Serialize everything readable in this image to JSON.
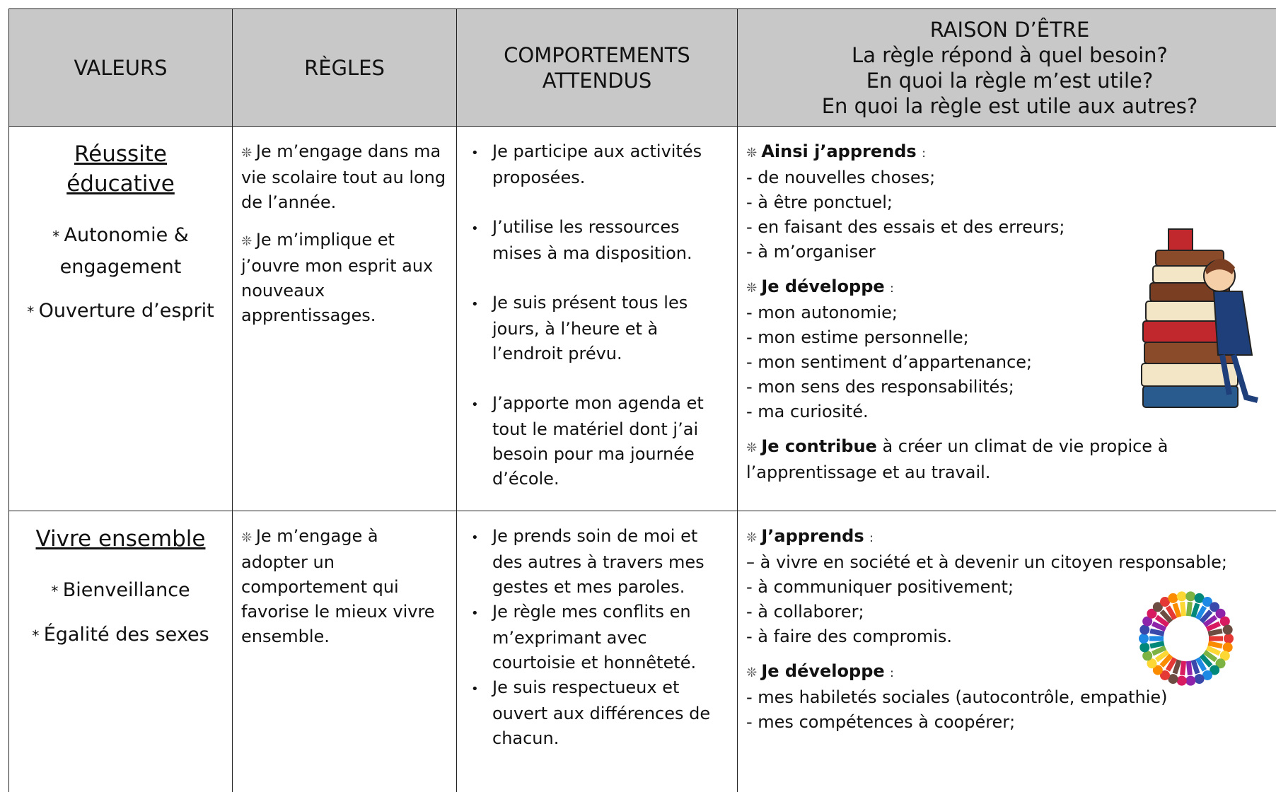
{
  "table": {
    "header": {
      "valeurs": "VALEURS",
      "regles": "RÈGLES",
      "comportements": [
        "COMPORTEMENTS",
        "ATTENDUS"
      ],
      "raison": {
        "title": "RAISON D’ÊTRE",
        "questions": [
          "La règle répond à quel besoin?",
          "En quoi la règle m’est utile?",
          "En quoi la règle est utile aux autres?"
        ]
      }
    },
    "rows": [
      {
        "valeur": {
          "title": [
            "Réussite",
            "éducative"
          ],
          "items": [
            "Autonomie & engagement",
            "Ouverture d’esprit"
          ]
        },
        "regles": [
          "Je m’engage dans ma vie scolaire tout au long de l’année.",
          "Je m’implique et j’ouvre mon esprit aux nouveaux apprentissages."
        ],
        "comportements": [
          "Je participe aux activités proposées.",
          "J’utilise les ressources mises à ma disposition.",
          "Je suis présent tous les jours, à l’heure et à l’endroit prévu.",
          "J’apporte mon agenda et tout le matériel dont j’ai besoin pour ma journée d’école."
        ],
        "raison": [
          {
            "lead": "Ainsi j’apprends",
            "text": ":",
            "items": [
              "- de nouvelles choses;",
              "- à être ponctuel;",
              "- en faisant des essais et des erreurs;",
              "- à m’organiser"
            ]
          },
          {
            "lead": "Je développe",
            "text": ":",
            "items": [
              "- mon autonomie;",
              "- mon estime personnelle;",
              "- mon sentiment d’appartenance;",
              "- mon sens des responsabilités;",
              "- ma curiosité."
            ]
          },
          {
            "lead": "Je contribue",
            "text": "à créer un climat de vie propice à l’apprentissage et au travail."
          }
        ]
      },
      {
        "valeur": {
          "title": [
            "Vivre ensemble"
          ],
          "items": [
            "Bienveillance",
            "Égalité des sexes"
          ]
        },
        "regles": [
          "Je m’engage à adopter un comportement qui favorise le mieux vivre ensemble."
        ],
        "comportements": [
          "Je prends soin de moi et des autres à travers mes gestes et mes paroles.",
          "Je règle mes conflits en m’exprimant avec courtoisie et honnêteté.",
          "Je suis respectueux et ouvert aux différences de chacun."
        ],
        "raison": [
          {
            "lead": "J’apprends",
            "text": ":",
            "items": [
              "– à vivre en société et à devenir un citoyen responsable;",
              "- à communiquer positivement;",
              "- à collaborer;",
              "- à faire des compromis."
            ]
          },
          {
            "lead": "Je développe",
            "text": ":",
            "items": [
              "- mes habiletés sociales (autocontrôle, empathie)",
              "- mes compétences à coopérer;"
            ]
          }
        ]
      }
    ]
  }
}
